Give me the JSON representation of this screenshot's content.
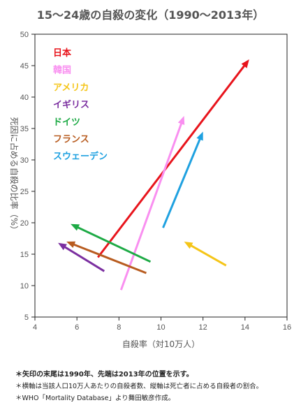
{
  "title": "15〜24歳の自殺の変化（1990〜2013年）",
  "chart_data": {
    "type": "scatter",
    "xlabel": "自殺率（対10万人）",
    "ylabel": "死因に占める自殺の比率（%）",
    "xlim": [
      4,
      16
    ],
    "ylim": [
      5,
      50
    ],
    "xticks": [
      "4",
      "6",
      "8",
      "10",
      "12",
      "14",
      "16"
    ],
    "yticks": [
      "5",
      "10",
      "15",
      "20",
      "25",
      "30",
      "35",
      "40",
      "45",
      "50"
    ],
    "grid": false,
    "legend_placement": "top-left",
    "series": [
      {
        "name": "日本",
        "color": "#e8141c",
        "start": [
          7.0,
          14.5
        ],
        "end": [
          14.2,
          46.0
        ]
      },
      {
        "name": "韓国",
        "color": "#f98ff0",
        "start": [
          8.1,
          9.3
        ],
        "end": [
          11.1,
          37.0
        ]
      },
      {
        "name": "アメリカ",
        "color": "#f5c518",
        "start": [
          13.1,
          13.2
        ],
        "end": [
          11.1,
          17.0
        ]
      },
      {
        "name": "イギリス",
        "color": "#7b2fa0",
        "start": [
          7.3,
          12.3
        ],
        "end": [
          5.1,
          16.8
        ]
      },
      {
        "name": "ドイツ",
        "color": "#1daa45",
        "start": [
          9.5,
          13.8
        ],
        "end": [
          5.7,
          19.8
        ]
      },
      {
        "name": "フランス",
        "color": "#b85c20",
        "start": [
          9.3,
          12.0
        ],
        "end": [
          5.5,
          17.0
        ]
      },
      {
        "name": "スウェーデン",
        "color": "#1fa1e0",
        "start": [
          10.1,
          19.2
        ],
        "end": [
          12.0,
          34.5
        ]
      }
    ]
  },
  "notes": [
    "＊矢印の末尾は1990年、先端は2013年の位置を示す。",
    "＊横軸は当該人口10万人あたりの自殺者数、縦軸は死亡者に占める自殺者の割合。",
    "＊WHO「Mortality Database」より舞田敏彦作成。"
  ]
}
